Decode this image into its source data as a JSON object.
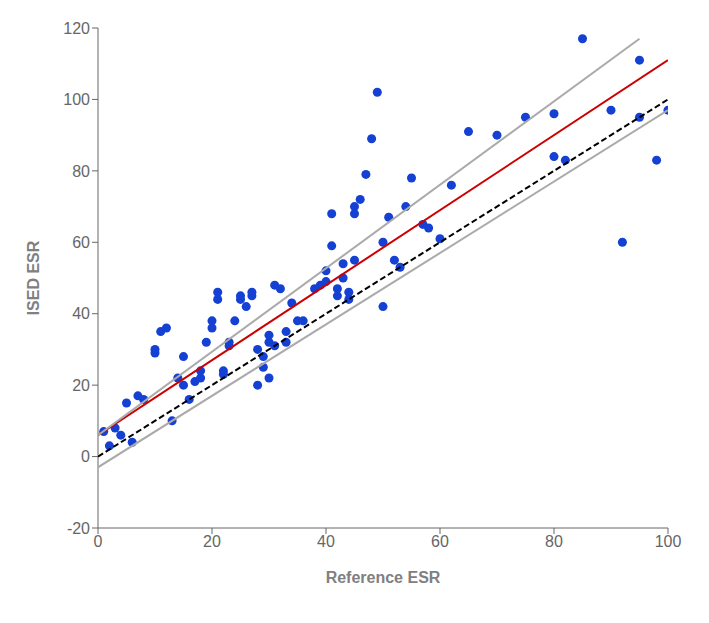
{
  "chart_data": {
    "type": "scatter",
    "xlabel": "Reference ESR",
    "ylabel": "ISED ESR",
    "xlim": [
      0,
      100
    ],
    "ylim": [
      -20,
      120
    ],
    "xticks": [
      0,
      20,
      40,
      60,
      80,
      100
    ],
    "yticks": [
      -20,
      0,
      20,
      40,
      60,
      80,
      100,
      120
    ],
    "grid": false,
    "series": [
      {
        "type": "scatter",
        "color": "#1540d4",
        "marker": "circle",
        "x": [
          1,
          2,
          3,
          4,
          5,
          6,
          7,
          8,
          10,
          10,
          11,
          12,
          13,
          14,
          15,
          15,
          16,
          17,
          18,
          18,
          19,
          20,
          20,
          21,
          21,
          22,
          22,
          23,
          23,
          24,
          25,
          25,
          26,
          27,
          27,
          28,
          28,
          29,
          29,
          30,
          30,
          30,
          31,
          31,
          32,
          33,
          33,
          34,
          35,
          36,
          38,
          39,
          40,
          40,
          41,
          41,
          42,
          42,
          43,
          43,
          44,
          44,
          45,
          45,
          45,
          46,
          47,
          48,
          49,
          50,
          50,
          51,
          52,
          53,
          54,
          55,
          57,
          58,
          60,
          62,
          65,
          70,
          75,
          80,
          80,
          82,
          85,
          90,
          92,
          95,
          95,
          98,
          100
        ],
        "values": [
          7,
          3,
          8,
          6,
          15,
          4,
          17,
          16,
          30,
          29,
          35,
          36,
          10,
          22,
          20,
          28,
          16,
          21,
          24,
          22,
          32,
          36,
          38,
          44,
          46,
          24,
          23,
          32,
          31,
          38,
          44,
          45,
          42,
          45,
          46,
          20,
          30,
          28,
          25,
          34,
          32,
          22,
          31,
          48,
          47,
          32,
          35,
          43,
          38,
          38,
          47,
          48,
          49,
          52,
          59,
          68,
          47,
          45,
          50,
          54,
          46,
          44,
          68,
          70,
          55,
          72,
          79,
          89,
          102,
          60,
          42,
          67,
          55,
          53,
          70,
          78,
          65,
          64,
          61,
          76,
          91,
          90,
          95,
          84,
          96,
          83,
          117,
          97,
          60,
          111,
          95,
          83,
          97
        ]
      },
      {
        "type": "line",
        "color": "#000000",
        "line_style": "dashed",
        "x": [
          0,
          100
        ],
        "values": [
          0,
          100
        ]
      },
      {
        "type": "line",
        "color": "#aaaaaa",
        "line_style": "solid",
        "x": [
          0,
          100
        ],
        "values": [
          -3.0,
          97.0
        ]
      },
      {
        "type": "line",
        "color": "#cc0000",
        "line_style": "solid",
        "x": [
          0,
          100
        ],
        "values": [
          6.0,
          111.0
        ]
      },
      {
        "type": "line",
        "color": "#aaaaaa",
        "line_style": "solid",
        "x": [
          0,
          95
        ],
        "values": [
          6.0,
          117.0
        ]
      }
    ]
  }
}
